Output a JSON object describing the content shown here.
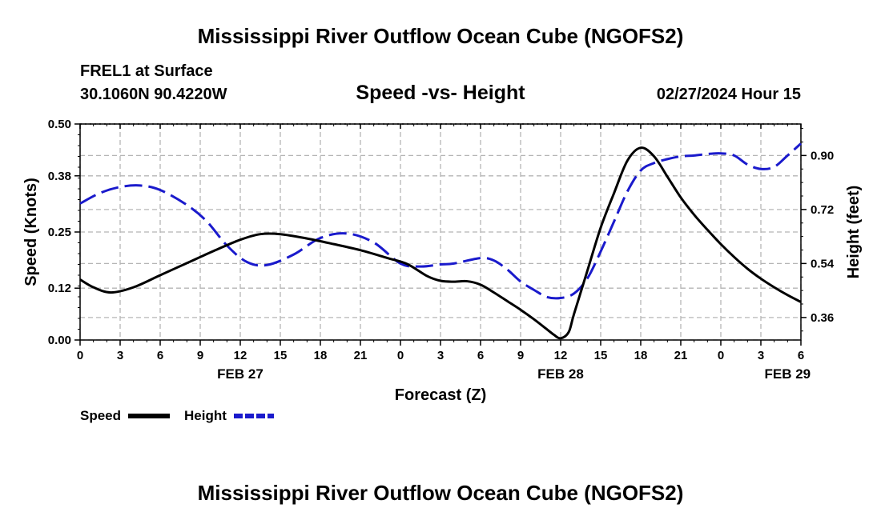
{
  "page": {
    "title": "Mississippi River Outflow Ocean Cube (NGOFS2)",
    "footer_title": "Mississippi River Outflow Ocean Cube (NGOFS2)",
    "station": "FREL1 at Surface",
    "coords": "30.1060N  90.4220W",
    "chart_title": "Speed -vs- Height",
    "date": "02/27/2024 Hour 15"
  },
  "chart_data": {
    "type": "line",
    "xlabel": "Forecast (Z)",
    "ylabel": "Speed (Knots)",
    "y2label": "Height (feet)",
    "x_range": [
      0,
      54
    ],
    "x_ticks": [
      {
        "v": 0,
        "label": "0"
      },
      {
        "v": 3,
        "label": "3"
      },
      {
        "v": 6,
        "label": "6"
      },
      {
        "v": 9,
        "label": "9"
      },
      {
        "v": 12,
        "label": "12"
      },
      {
        "v": 15,
        "label": "15"
      },
      {
        "v": 18,
        "label": "18"
      },
      {
        "v": 21,
        "label": "21"
      },
      {
        "v": 24,
        "label": "0"
      },
      {
        "v": 27,
        "label": "3"
      },
      {
        "v": 30,
        "label": "6"
      },
      {
        "v": 33,
        "label": "9"
      },
      {
        "v": 36,
        "label": "12"
      },
      {
        "v": 39,
        "label": "15"
      },
      {
        "v": 42,
        "label": "18"
      },
      {
        "v": 45,
        "label": "21"
      },
      {
        "v": 48,
        "label": "0"
      },
      {
        "v": 51,
        "label": "3"
      },
      {
        "v": 54,
        "label": "6"
      }
    ],
    "date_labels": [
      {
        "v": 12,
        "label": "FEB 27"
      },
      {
        "v": 36,
        "label": "FEB 28"
      },
      {
        "v": 53,
        "label": "FEB 29"
      }
    ],
    "y_left": {
      "range": [
        0,
        0.5
      ],
      "ticks": [
        0,
        0.12,
        0.25,
        0.38,
        0.5
      ],
      "tick_labels": [
        "0.00",
        "0.12",
        "0.25",
        "0.38",
        "0.50"
      ]
    },
    "y_right": {
      "range": [
        0.285,
        1.005
      ],
      "ticks": [
        0.36,
        0.54,
        0.72,
        0.9
      ],
      "tick_labels": [
        "0.36",
        "0.54",
        "0.72",
        "0.90"
      ]
    },
    "grid": true,
    "legend": "bottom-left",
    "series": [
      {
        "name": "Speed",
        "axis": "left",
        "color": "#000000",
        "dash": "solid",
        "x": [
          0,
          1,
          2.3,
          4,
          6,
          8,
          10,
          12,
          13.5,
          15,
          17,
          19,
          21,
          23,
          24.5,
          26,
          27,
          28,
          29,
          30,
          31,
          32,
          33,
          34,
          35,
          35.5,
          36,
          36.6,
          37,
          38,
          39,
          40,
          41,
          42,
          43,
          44,
          45,
          46,
          47,
          48,
          49,
          50,
          51,
          52,
          53,
          54
        ],
        "y": [
          0.14,
          0.122,
          0.11,
          0.122,
          0.15,
          0.178,
          0.206,
          0.232,
          0.245,
          0.245,
          0.235,
          0.222,
          0.208,
          0.19,
          0.176,
          0.148,
          0.137,
          0.135,
          0.136,
          0.128,
          0.11,
          0.09,
          0.07,
          0.048,
          0.024,
          0.012,
          0.004,
          0.018,
          0.06,
          0.16,
          0.26,
          0.34,
          0.415,
          0.445,
          0.425,
          0.378,
          0.33,
          0.29,
          0.255,
          0.222,
          0.192,
          0.165,
          0.142,
          0.122,
          0.104,
          0.088
        ]
      },
      {
        "name": "Height",
        "axis": "right",
        "color": "#1a1acc",
        "dash": "dashed",
        "x": [
          0,
          1.5,
          3,
          4.5,
          6,
          8,
          9.5,
          11,
          12.5,
          14,
          16,
          18,
          20,
          22,
          24,
          25.5,
          27,
          28,
          30,
          31,
          32,
          33,
          34,
          35,
          36,
          37,
          38,
          39,
          40,
          41,
          42,
          43,
          44,
          45,
          46,
          47,
          48,
          49,
          50,
          51,
          52,
          53,
          54
        ],
        "y": [
          0.74,
          0.775,
          0.795,
          0.8,
          0.785,
          0.735,
          0.68,
          0.6,
          0.545,
          0.535,
          0.57,
          0.625,
          0.64,
          0.61,
          0.54,
          0.53,
          0.537,
          0.54,
          0.558,
          0.55,
          0.52,
          0.48,
          0.452,
          0.428,
          0.425,
          0.44,
          0.49,
          0.58,
          0.68,
          0.78,
          0.85,
          0.875,
          0.888,
          0.897,
          0.9,
          0.905,
          0.907,
          0.9,
          0.87,
          0.855,
          0.862,
          0.9,
          0.94
        ]
      }
    ]
  }
}
